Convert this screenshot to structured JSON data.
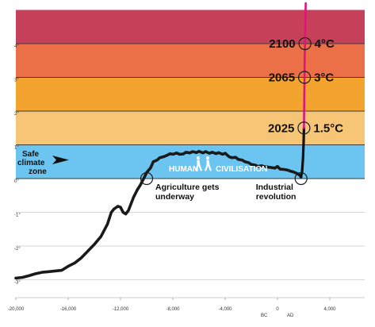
{
  "chart_data": {
    "type": "line",
    "title": "",
    "xlabel": "",
    "ylabel": "",
    "xlim": [
      -20000,
      6600
    ],
    "ylim": [
      -3.05,
      5
    ],
    "x_ticks": [
      {
        "value": -20000,
        "label": "-20,000"
      },
      {
        "value": -16000,
        "label": "-16,000"
      },
      {
        "value": -12000,
        "label": "-12,000"
      },
      {
        "value": -8000,
        "label": "-8,000"
      },
      {
        "value": -4000,
        "label": "-4,000"
      },
      {
        "value": 0,
        "label": "0"
      },
      {
        "value": 4000,
        "label": "4,000"
      }
    ],
    "x_era_labels": [
      "BC",
      "AD"
    ],
    "y_ticks": [
      {
        "value": 4,
        "label": "4°"
      },
      {
        "value": 3,
        "label": "3°"
      },
      {
        "value": 2,
        "label": "2°"
      },
      {
        "value": 1,
        "label": "1°"
      },
      {
        "value": 0,
        "label": "0°"
      },
      {
        "value": -1,
        "label": "-1°"
      },
      {
        "value": -2,
        "label": "-2°"
      },
      {
        "value": -3,
        "label": "-3°"
      }
    ],
    "bands": [
      {
        "from": 4,
        "to": 5,
        "color": "#c7405a"
      },
      {
        "from": 3,
        "to": 4,
        "color": "#ec7047"
      },
      {
        "from": 2,
        "to": 3,
        "color": "#f2a42e"
      },
      {
        "from": 1,
        "to": 2,
        "color": "#f6c676"
      },
      {
        "from": 0,
        "to": 1,
        "color": "#6cc5f0"
      }
    ],
    "safe_zone_label": [
      "Safe",
      "climate",
      "zone"
    ],
    "civilisation_label": [
      "HUMAN",
      "CIVILISATION"
    ],
    "series": [
      {
        "color": "#1a1a1a",
        "x": [
          -20000,
          -19500,
          -19000,
          -18500,
          -18000,
          -17500,
          -17000,
          -16500,
          -16000,
          -15500,
          -15000,
          -14500,
          -14000,
          -13500,
          -13000,
          -12700,
          -12500,
          -12200,
          -12000,
          -11800,
          -11600,
          -11400,
          -11200,
          -11000,
          -10700,
          -10500,
          -10200,
          -10000,
          -9700,
          -9500,
          -9200,
          -9000,
          -8700,
          -8500,
          -8200,
          -8000,
          -7700,
          -7500,
          -7200,
          -7000,
          -6700,
          -6500,
          -6200,
          -6000,
          -5700,
          -5500,
          -5200,
          -5000,
          -4700,
          -4500,
          -4200,
          -4000,
          -3700,
          -3500,
          -3200,
          -3000,
          -2700,
          -2500,
          -2200,
          -2000,
          -1700,
          -1500,
          -1200,
          -1000,
          -700,
          -500,
          -200,
          0,
          200,
          500,
          800,
          1000,
          1200,
          1500,
          1700,
          1800
        ],
        "y": [
          -2.95,
          -2.93,
          -2.88,
          -2.82,
          -2.78,
          -2.76,
          -2.74,
          -2.72,
          -2.6,
          -2.5,
          -2.35,
          -2.15,
          -1.95,
          -1.72,
          -1.35,
          -1.0,
          -0.9,
          -0.82,
          -0.85,
          -1.0,
          -1.05,
          -0.95,
          -0.75,
          -0.55,
          -0.32,
          -0.2,
          0.02,
          0.18,
          0.32,
          0.5,
          0.55,
          0.62,
          0.65,
          0.68,
          0.74,
          0.72,
          0.76,
          0.72,
          0.73,
          0.78,
          0.76,
          0.8,
          0.77,
          0.81,
          0.76,
          0.8,
          0.75,
          0.78,
          0.74,
          0.77,
          0.72,
          0.75,
          0.65,
          0.62,
          0.63,
          0.57,
          0.55,
          0.5,
          0.47,
          0.42,
          0.4,
          0.36,
          0.38,
          0.35,
          0.34,
          0.33,
          0.31,
          0.36,
          0.28,
          0.27,
          0.25,
          0.22,
          0.2,
          0.15,
          0.1,
          0.05
        ]
      },
      {
        "color": "#111111",
        "x": [
          1800,
          1880,
          1950,
          2000,
          2025
        ],
        "y": [
          0.05,
          0.2,
          0.6,
          1.1,
          1.5
        ]
      },
      {
        "color": "#e0157c",
        "x": [
          2025,
          2040,
          2065,
          2080,
          2100,
          2130,
          2160
        ],
        "y": [
          1.5,
          2.2,
          3.0,
          3.5,
          4.0,
          4.6,
          5.2
        ]
      }
    ],
    "annotations": [
      {
        "year": "2100",
        "value": "4°C",
        "x": 2100,
        "y": 4
      },
      {
        "year": "2065",
        "value": "3°C",
        "x": 2065,
        "y": 3
      },
      {
        "year": "2025",
        "value": "1.5°C",
        "x": 2025,
        "y": 1.5
      },
      {
        "lines": [
          "Agriculture gets",
          "underway"
        ],
        "x": -10000,
        "y": 0
      },
      {
        "lines": [
          "Industrial",
          "revolution"
        ],
        "x": 1800,
        "y": 0
      }
    ]
  }
}
